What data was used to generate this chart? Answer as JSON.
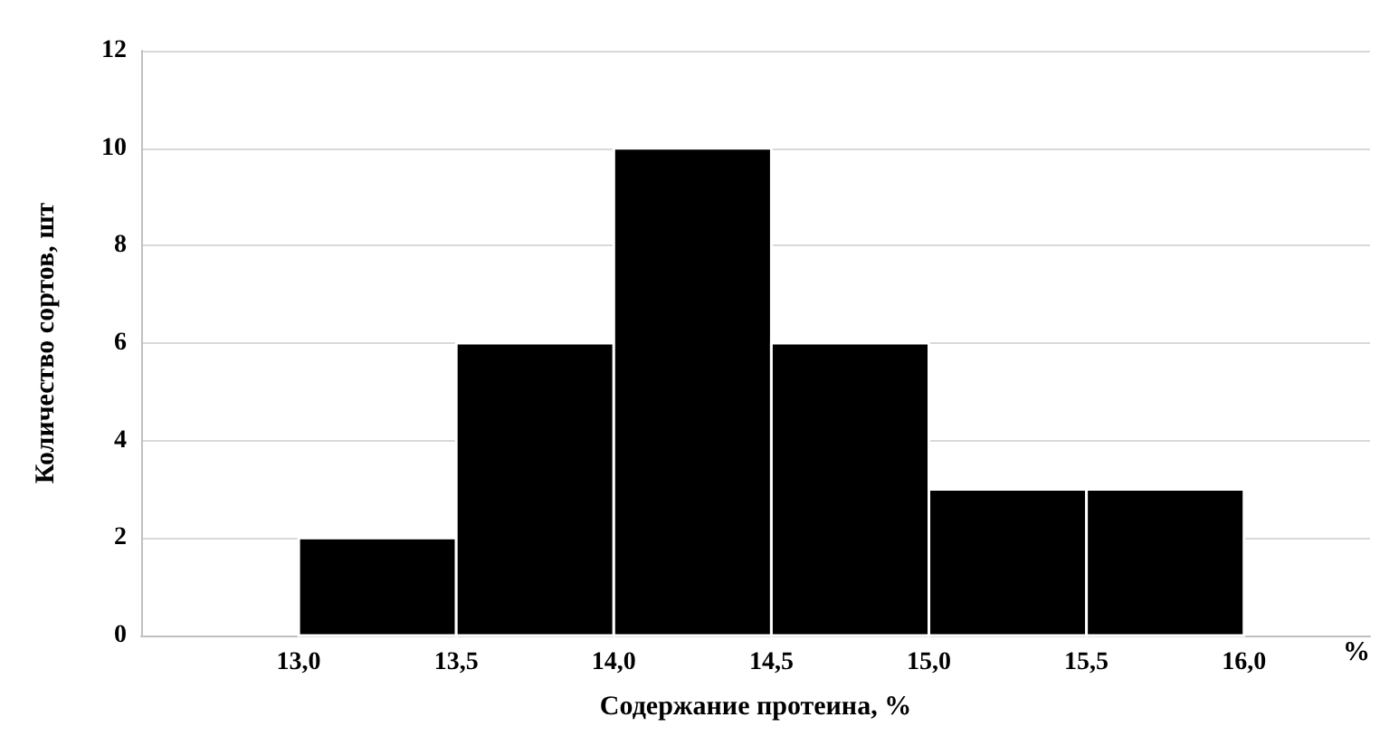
{
  "chart_data": {
    "type": "histogram",
    "xlabel": "Содержание протеина, %",
    "ylabel": "Количество сортов, шт",
    "bins": [
      13.0,
      13.5,
      14.0,
      14.5,
      15.0,
      15.5,
      16.0
    ],
    "values": [
      2,
      6,
      10,
      6,
      3,
      3
    ],
    "color": "#000000",
    "xlim": [
      12.5,
      16.4
    ],
    "xticks": [
      {
        "value": 13.0,
        "label": "13,0"
      },
      {
        "value": 13.5,
        "label": "13,5"
      },
      {
        "value": 14.0,
        "label": "14,0"
      },
      {
        "value": 14.5,
        "label": "14,5"
      },
      {
        "value": 15.0,
        "label": "15,0"
      },
      {
        "value": 15.5,
        "label": "15,5"
      },
      {
        "value": 16.0,
        "label": "16,0"
      }
    ],
    "ylim": [
      0,
      12
    ],
    "yticks": [
      0,
      2,
      4,
      6,
      8,
      10,
      12
    ],
    "grid": "y",
    "annotations": [
      "%"
    ]
  }
}
